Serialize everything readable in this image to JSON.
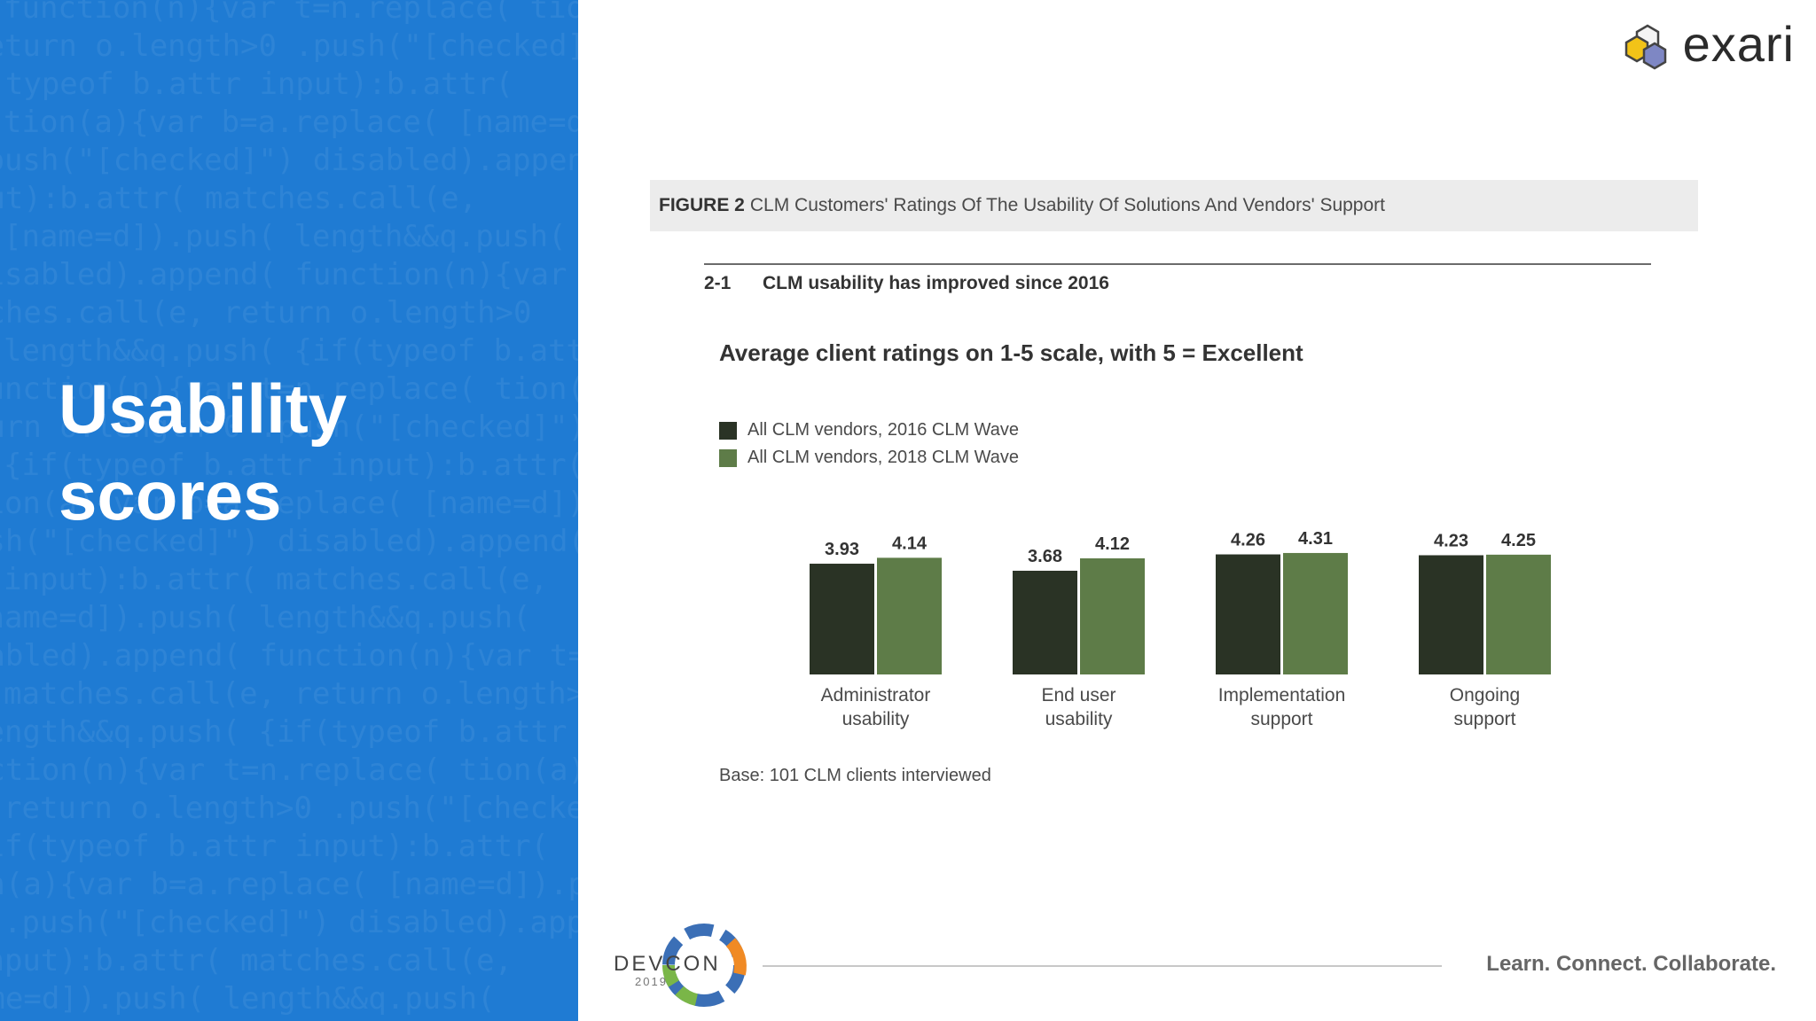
{
  "slide": {
    "title_line1": "Usability",
    "title_line2": "scores",
    "background_color": "#1f7bd3"
  },
  "logo": {
    "text": "exari",
    "icon": "hexagon-cluster-icon"
  },
  "figure": {
    "label": "FIGURE 2",
    "caption": "CLM Customers' Ratings Of The Usability Of Solutions And Vendors' Support",
    "sub_number": "2-1",
    "sub_title": "CLM usability has improved since 2016",
    "base_note": "Base: 101 CLM clients interviewed"
  },
  "chart_data": {
    "type": "bar",
    "title": "Average client ratings on 1-5 scale, with 5 = Excellent",
    "categories": [
      "Administrator usability",
      "End user usability",
      "Implementation support",
      "Ongoing support"
    ],
    "category_lines": [
      [
        "Administrator",
        "usability"
      ],
      [
        "End user",
        "usability"
      ],
      [
        "Implementation",
        "support"
      ],
      [
        "Ongoing",
        "support"
      ]
    ],
    "series": [
      {
        "name": "All CLM vendors, 2016 CLM Wave",
        "values": [
          3.93,
          3.68,
          4.26,
          4.23
        ],
        "color": "#2a3325"
      },
      {
        "name": "All CLM vendors, 2018 CLM Wave",
        "values": [
          4.14,
          4.12,
          4.31,
          4.25
        ],
        "color": "#5e7c48"
      }
    ],
    "legend_position": "top-left",
    "grid": false
  },
  "footer": {
    "event": "DEVCON",
    "year": "2019",
    "tagline": "Learn. Connect. Collaborate."
  }
}
